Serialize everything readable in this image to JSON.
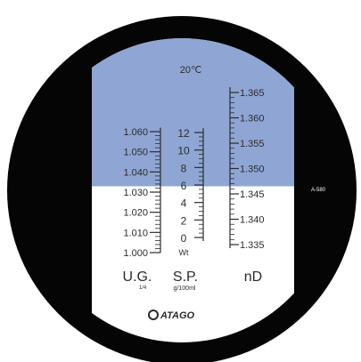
{
  "temperature_label": "20℃",
  "side_label": "A-580",
  "brand": "ATAGO",
  "colors": {
    "eyepiece": "#050505",
    "sky_field": "#8fa6d4",
    "light_field": "#ffffff",
    "ink": "#2b2b2b",
    "frame": "#ffffff"
  },
  "shadow_boundary_nd": 1.3465,
  "scales": {
    "ug": {
      "title": "U.G.",
      "subtitle": "1/4",
      "labels": [
        "1.060",
        "1.050",
        "1.040",
        "1.030",
        "1.020",
        "1.010",
        "1.000"
      ]
    },
    "sp": {
      "title": "S.P.",
      "subtitle": "g/100ml",
      "labels": [
        "12",
        "10",
        "8",
        "6",
        "4",
        "2",
        "0",
        "Wt"
      ]
    },
    "nd": {
      "title": "nD",
      "labels": [
        "1.365",
        "1.360",
        "1.355",
        "1.350",
        "1.345",
        "1.340",
        "1.335"
      ]
    }
  }
}
